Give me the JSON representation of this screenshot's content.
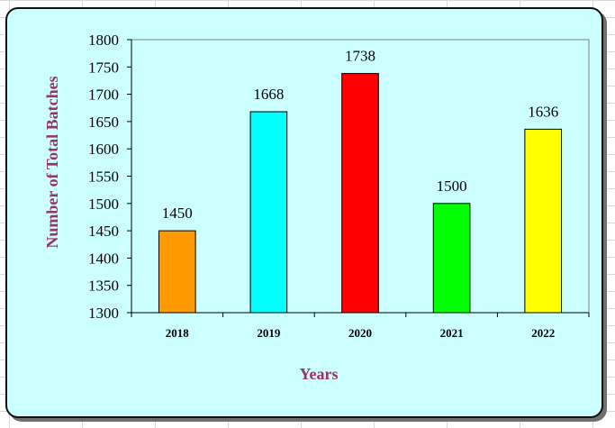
{
  "chart_data": {
    "type": "bar",
    "title": "",
    "xlabel": "Years",
    "ylabel": "Number of Total Batches",
    "categories": [
      "2018",
      "2019",
      "2020",
      "2021",
      "2022"
    ],
    "values": [
      1450,
      1668,
      1738,
      1500,
      1636
    ],
    "data_labels": [
      "1450",
      "1668",
      "1738",
      "1500",
      "1636"
    ],
    "bar_colors": [
      "#ff9900",
      "#00ffff",
      "#ff0000",
      "#00ff00",
      "#ffff00"
    ],
    "ylim": [
      1300,
      1800
    ],
    "yticks": [
      1300,
      1350,
      1400,
      1450,
      1500,
      1550,
      1600,
      1650,
      1700,
      1750,
      1800
    ],
    "ytick_labels": [
      "1300",
      "1350",
      "1400",
      "1450",
      "1500",
      "1550",
      "1600",
      "1650",
      "1700",
      "1750",
      "1800"
    ],
    "grid": false,
    "legend": "none",
    "plot_background": "#ccffff",
    "frame_background": "#ccffff"
  }
}
